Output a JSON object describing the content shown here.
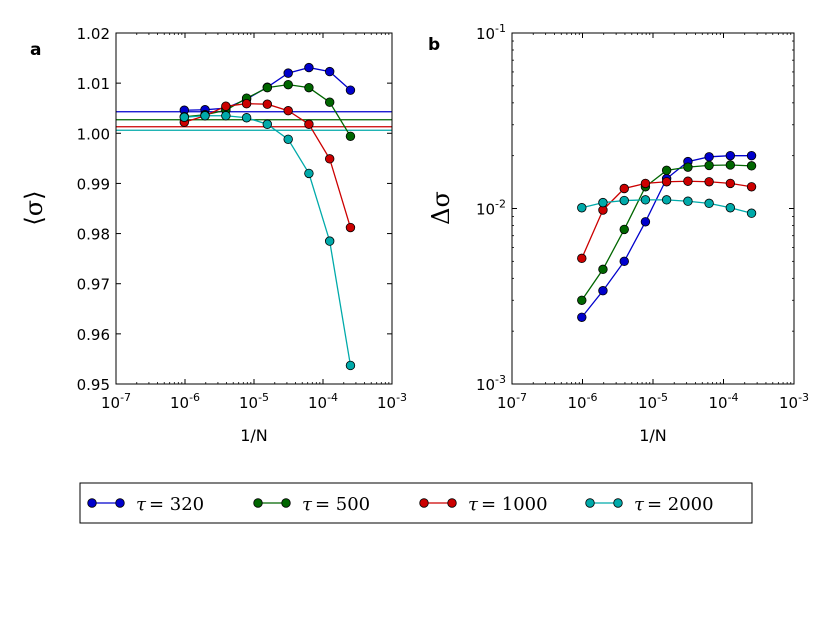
{
  "chart_data": [
    {
      "type": "line",
      "panel_label": "a",
      "xlabel": "1/N",
      "ylabel": "⟨σ⟩",
      "xscale": "log",
      "xlim": [
        1e-07,
        0.001
      ],
      "ylim": [
        0.95,
        1.02
      ],
      "x_ticks": [
        1e-07,
        1e-06,
        1e-05,
        0.0001,
        0.001
      ],
      "x_tick_labels": [
        {
          "base": "10",
          "exp": "-7"
        },
        {
          "base": "10",
          "exp": "-6"
        },
        {
          "base": "10",
          "exp": "-5"
        },
        {
          "base": "10",
          "exp": "-4"
        },
        {
          "base": "10",
          "exp": "-3"
        }
      ],
      "y_ticks": [
        0.95,
        0.96,
        0.97,
        0.98,
        0.99,
        1.0,
        1.01,
        1.02
      ],
      "y_tick_labels": [
        "0.95",
        "0.96",
        "0.97",
        "0.98",
        "0.99",
        "1.00",
        "1.01",
        "1.02"
      ],
      "grid": false,
      "series": [
        {
          "name": "τ = 320",
          "color": "#0000cc",
          "x": [
            9.77e-07,
            1.95e-06,
            3.91e-06,
            7.81e-06,
            1.56e-05,
            3.13e-05,
            6.25e-05,
            0.000125,
            0.00025
          ],
          "y": [
            1.0046,
            1.0047,
            1.005,
            1.0068,
            1.0092,
            1.012,
            1.0131,
            1.0123,
            1.0086
          ],
          "hline": 1.0043
        },
        {
          "name": "τ = 500",
          "color": "#006600",
          "x": [
            9.77e-07,
            1.95e-06,
            3.91e-06,
            7.81e-06,
            1.56e-05,
            3.13e-05,
            6.25e-05,
            0.000125,
            0.00025
          ],
          "y": [
            1.0033,
            1.0037,
            1.0046,
            1.007,
            1.0091,
            1.0097,
            1.0091,
            1.0062,
            0.9994
          ],
          "hline": 1.0027
        },
        {
          "name": "τ = 1000",
          "color": "#cc0000",
          "x": [
            9.77e-07,
            1.95e-06,
            3.91e-06,
            7.81e-06,
            1.56e-05,
            3.13e-05,
            6.25e-05,
            0.000125,
            0.00025
          ],
          "y": [
            1.0022,
            1.0035,
            1.0054,
            1.0059,
            1.0058,
            1.0045,
            1.0018,
            0.9949,
            0.9812
          ],
          "hline": 1.0013
        },
        {
          "name": "τ = 2000",
          "color": "#00aaaa",
          "x": [
            9.77e-07,
            1.95e-06,
            3.91e-06,
            7.81e-06,
            1.56e-05,
            3.13e-05,
            6.25e-05,
            0.000125,
            0.00025
          ],
          "y": [
            1.0032,
            1.0035,
            1.0035,
            1.0031,
            1.0018,
            0.9988,
            0.992,
            0.9785,
            0.9537
          ],
          "hline": 1.0006
        }
      ]
    },
    {
      "type": "line",
      "panel_label": "b",
      "xlabel": "1/N",
      "ylabel": "Δσ",
      "xscale": "log",
      "yscale": "log",
      "xlim": [
        1e-07,
        0.001
      ],
      "ylim": [
        0.001,
        0.1
      ],
      "x_ticks": [
        1e-07,
        1e-06,
        1e-05,
        0.0001,
        0.001
      ],
      "x_tick_labels": [
        {
          "base": "10",
          "exp": "-7"
        },
        {
          "base": "10",
          "exp": "-6"
        },
        {
          "base": "10",
          "exp": "-5"
        },
        {
          "base": "10",
          "exp": "-4"
        },
        {
          "base": "10",
          "exp": "-3"
        }
      ],
      "y_ticks": [
        0.001,
        0.01,
        0.1
      ],
      "y_tick_labels": [
        {
          "base": "10",
          "exp": "-3"
        },
        {
          "base": "10",
          "exp": "-2"
        },
        {
          "base": "10",
          "exp": "-1"
        }
      ],
      "grid": false,
      "series": [
        {
          "name": "τ = 320",
          "color": "#0000cc",
          "x": [
            9.77e-07,
            1.95e-06,
            3.91e-06,
            7.81e-06,
            1.56e-05,
            3.13e-05,
            6.25e-05,
            0.000125,
            0.00025
          ],
          "y": [
            0.0024,
            0.0034,
            0.005,
            0.0084,
            0.0148,
            0.0185,
            0.0197,
            0.02,
            0.02
          ]
        },
        {
          "name": "τ = 500",
          "color": "#006600",
          "x": [
            9.77e-07,
            1.95e-06,
            3.91e-06,
            7.81e-06,
            1.56e-05,
            3.13e-05,
            6.25e-05,
            0.000125,
            0.00025
          ],
          "y": [
            0.003,
            0.0045,
            0.0076,
            0.0133,
            0.0165,
            0.0172,
            0.0176,
            0.0177,
            0.0175
          ]
        },
        {
          "name": "τ = 1000",
          "color": "#cc0000",
          "x": [
            9.77e-07,
            1.95e-06,
            3.91e-06,
            7.81e-06,
            1.56e-05,
            3.13e-05,
            6.25e-05,
            0.000125,
            0.00025
          ],
          "y": [
            0.0052,
            0.0098,
            0.013,
            0.0139,
            0.0142,
            0.0143,
            0.0142,
            0.0139,
            0.0133
          ]
        },
        {
          "name": "τ = 2000",
          "color": "#00aaaa",
          "x": [
            9.77e-07,
            1.95e-06,
            3.91e-06,
            7.81e-06,
            1.56e-05,
            3.13e-05,
            6.25e-05,
            0.000125,
            0.00025
          ],
          "y": [
            0.0101,
            0.0108,
            0.0111,
            0.0112,
            0.0112,
            0.011,
            0.0107,
            0.0101,
            0.0094
          ]
        }
      ]
    }
  ],
  "legend": {
    "placement": "bottom-center",
    "entries": [
      {
        "symbol": "τ",
        "value": "= 320",
        "color": "#0000cc"
      },
      {
        "symbol": "τ",
        "value": "= 500",
        "color": "#006600"
      },
      {
        "symbol": "τ",
        "value": "= 1000",
        "color": "#cc0000"
      },
      {
        "symbol": "τ",
        "value": "= 2000",
        "color": "#00aaaa"
      }
    ]
  }
}
